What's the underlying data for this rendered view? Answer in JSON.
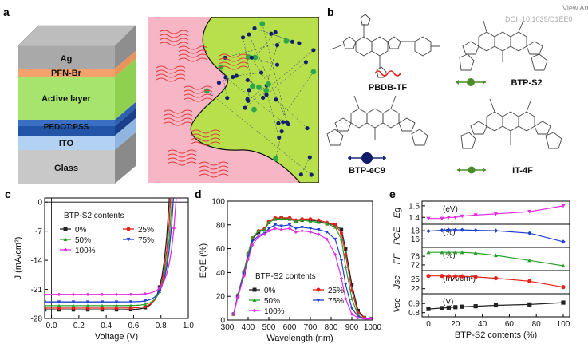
{
  "watermark": {
    "line1": "View Article",
    "line2": "DOI: 10.1039/D1EE0"
  },
  "panel_labels": {
    "a": "a",
    "b": "b",
    "c": "c",
    "d": "d",
    "e": "e"
  },
  "device_layers": [
    "Ag",
    "PFN-Br",
    "Active layer",
    "PEDOT:PSS",
    "ITO",
    "Glass"
  ],
  "molecules": {
    "pbdb": "PBDB-TF",
    "s2": "BTP-S2",
    "ec9": "BTP-eC9",
    "it4f": "IT-4F"
  },
  "colors": {
    "r0": "#222222",
    "r25": "#e2231a",
    "r50": "#2ca02c",
    "r75": "#1f3fcf",
    "r100": "#e22ee2"
  },
  "panel_c": {
    "xlabel": "Voltage (V)",
    "ylabel": "J (mA/cm²)",
    "legend_title": "BTP-S2 contents"
  },
  "panel_d": {
    "xlabel": "Wavelength (nm)",
    "ylabel": "EQE (%)",
    "legend_title": "BTP-S2 contents"
  },
  "panel_e": {
    "xlabel": "BTP-S2 contents (%)",
    "sub_ylabels": [
      "Eg",
      "PCE",
      "FF",
      "Jsc",
      "Voc"
    ],
    "sub_units": [
      "(eV)",
      "(%)",
      "(%)",
      "(mA/cm²)",
      "(V)"
    ]
  },
  "chart_data": [
    {
      "type": "line",
      "xlabel": "Voltage (V)",
      "ylabel": "J (mA/cm²)",
      "xlim": [
        -0.05,
        1.0
      ],
      "ylim": [
        -28,
        1
      ],
      "xticks": [
        "0.0",
        "0.2",
        "0.4",
        "0.6",
        "0.8",
        "1.0"
      ],
      "yticks": [
        "0",
        "-7",
        "-14",
        "-21",
        "-28"
      ],
      "legend_title": "BTP-S2 contents",
      "series": [
        {
          "name": "0%",
          "color": "#222222",
          "jsc": -25.9,
          "voc": 0.86
        },
        {
          "name": "25%",
          "color": "#e2231a",
          "jsc": -25.5,
          "voc": 0.87
        },
        {
          "name": "50%",
          "color": "#2ca02c",
          "jsc": -24.9,
          "voc": 0.88
        },
        {
          "name": "75%",
          "color": "#1f3fcf",
          "jsc": -24.0,
          "voc": 0.89
        },
        {
          "name": "100%",
          "color": "#e22ee2",
          "jsc": -22.2,
          "voc": 0.91
        }
      ]
    },
    {
      "type": "line",
      "xlabel": "Wavelength (nm)",
      "ylabel": "EQE (%)",
      "xlim": [
        300,
        1000
      ],
      "ylim": [
        0,
        100
      ],
      "xticks": [
        "300",
        "400",
        "500",
        "600",
        "700",
        "800",
        "900",
        "1000"
      ],
      "yticks": [
        "0",
        "20",
        "40",
        "60",
        "80",
        "100"
      ],
      "legend_title": "BTP-S2 contents",
      "x": [
        330,
        350,
        380,
        400,
        420,
        450,
        480,
        500,
        530,
        560,
        600,
        630,
        660,
        700,
        740,
        780,
        820,
        850,
        870,
        900,
        930,
        960,
        990
      ],
      "series": [
        {
          "name": "0%",
          "color": "#222222",
          "values": [
            5,
            20,
            40,
            55,
            68,
            74,
            76,
            82,
            85,
            86,
            85,
            83,
            84,
            84,
            83,
            81,
            80,
            76,
            60,
            30,
            8,
            2,
            1
          ]
        },
        {
          "name": "25%",
          "color": "#e2231a",
          "values": [
            5,
            21,
            41,
            56,
            69,
            75,
            77,
            83,
            86,
            86,
            86,
            84,
            85,
            85,
            84,
            82,
            80,
            73,
            55,
            25,
            6,
            2,
            1
          ]
        },
        {
          "name": "50%",
          "color": "#2ca02c",
          "values": [
            5,
            21,
            41,
            56,
            69,
            75,
            76,
            82,
            85,
            85,
            85,
            83,
            84,
            83,
            82,
            81,
            78,
            68,
            45,
            18,
            4,
            1,
            1
          ]
        },
        {
          "name": "75%",
          "color": "#1f3fcf",
          "values": [
            5,
            20,
            39,
            53,
            66,
            71,
            73,
            77,
            80,
            79,
            80,
            77,
            78,
            77,
            76,
            74,
            68,
            50,
            30,
            10,
            3,
            1,
            1
          ]
        },
        {
          "name": "100%",
          "color": "#e22ee2",
          "values": [
            5,
            19,
            37,
            51,
            63,
            70,
            72,
            75,
            77,
            76,
            77,
            74,
            75,
            74,
            72,
            68,
            55,
            35,
            18,
            5,
            2,
            1,
            1
          ]
        }
      ]
    },
    {
      "type": "line",
      "xlabel": "BTP-S2 contents (%)",
      "x": [
        0,
        10,
        15,
        20,
        25,
        35,
        50,
        75,
        100
      ],
      "xticks": [
        "0",
        "20",
        "40",
        "60",
        "80",
        "100"
      ],
      "subplots": [
        {
          "ylabel": "Eg",
          "unit": "(eV)",
          "color": "#e22ee2",
          "marker": "triangle-down",
          "yticks": [
            "1.4",
            "1.5"
          ],
          "ylim": [
            1.36,
            1.52
          ],
          "values": [
            1.39,
            1.39,
            1.4,
            1.4,
            1.41,
            1.42,
            1.43,
            1.45,
            1.5
          ]
        },
        {
          "ylabel": "PCE",
          "unit": "(%)",
          "color": "#1f3fcf",
          "marker": "diamond",
          "yticks": [
            "16",
            "18"
          ],
          "ylim": [
            14.5,
            19
          ],
          "values": [
            17.9,
            18.1,
            18.2,
            18.2,
            18.2,
            18.1,
            18.0,
            17.4,
            15.3
          ]
        },
        {
          "ylabel": "FF",
          "unit": "(%)",
          "color": "#2ca02c",
          "marker": "triangle-up",
          "yticks": [
            "72",
            "76"
          ],
          "ylim": [
            70.5,
            79
          ],
          "values": [
            77.8,
            77.8,
            77.8,
            77.8,
            77.8,
            77.5,
            76.4,
            74.1,
            71.6
          ]
        },
        {
          "ylabel": "Jsc",
          "unit": "(mA/cm²)",
          "color": "#e2231a",
          "marker": "circle",
          "yticks": [
            "22",
            "25"
          ],
          "ylim": [
            21.2,
            26.8
          ],
          "values": [
            25.9,
            25.9,
            25.8,
            25.8,
            25.8,
            25.6,
            25.2,
            24.3,
            22.5
          ]
        },
        {
          "ylabel": "Voc",
          "unit": "(V)",
          "color": "#222222",
          "marker": "square",
          "yticks": [
            "0.8",
            "0.9"
          ],
          "ylim": [
            0.78,
            0.98
          ],
          "values": [
            0.84,
            0.85,
            0.855,
            0.86,
            0.865,
            0.87,
            0.88,
            0.89,
            0.91
          ]
        }
      ]
    }
  ]
}
